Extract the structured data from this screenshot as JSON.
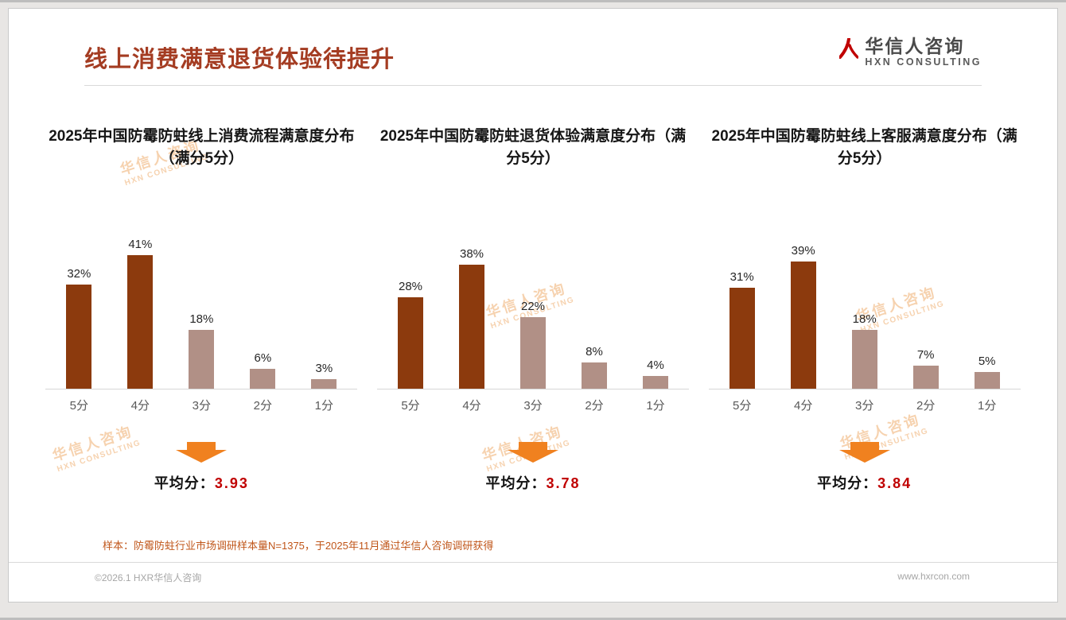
{
  "page": {
    "title": "线上消费满意退货体验待提升",
    "logo": {
      "name": "华信人咨询",
      "subtitle": "HXN CONSULTING"
    },
    "watermark": {
      "line1": "华信人咨询",
      "line2": "HXN CONSULTING"
    },
    "footnote": "样本：防霉防蛀行业市场调研样本量N=1375，于2025年11月通过华信人咨询调研获得",
    "copyright": "©2026.1 HXR华信人咨询",
    "website": "www.hxrcon.com"
  },
  "colors": {
    "title": "#A43C22",
    "bar_dark": "#8C3A0D",
    "bar_light": "#B19086",
    "arrow": "#F0811F",
    "avg_number": "#C00000",
    "footnote": "#C0561A"
  },
  "chart_data": [
    {
      "type": "bar",
      "title": "2025年中国防霉防蛀线上消费流程满意度分布（满分5分）",
      "categories": [
        "5分",
        "4分",
        "3分",
        "2分",
        "1分"
      ],
      "values": [
        32,
        41,
        18,
        6,
        3
      ],
      "value_labels": [
        "32%",
        "41%",
        "18%",
        "6%",
        "3%"
      ],
      "dark_bars": 2,
      "ylim": [
        0,
        45
      ],
      "grid": false,
      "legend": false,
      "avg_label": "平均分：",
      "avg_value": "3.93"
    },
    {
      "type": "bar",
      "title": "2025年中国防霉防蛀退货体验满意度分布（满分5分）",
      "categories": [
        "5分",
        "4分",
        "3分",
        "2分",
        "1分"
      ],
      "values": [
        28,
        38,
        22,
        8,
        4
      ],
      "value_labels": [
        "28%",
        "38%",
        "22%",
        "8%",
        "4%"
      ],
      "dark_bars": 2,
      "ylim": [
        0,
        45
      ],
      "grid": false,
      "legend": false,
      "avg_label": "平均分：",
      "avg_value": "3.78"
    },
    {
      "type": "bar",
      "title": "2025年中国防霉防蛀线上客服满意度分布（满分5分）",
      "categories": [
        "5分",
        "4分",
        "3分",
        "2分",
        "1分"
      ],
      "values": [
        31,
        39,
        18,
        7,
        5
      ],
      "value_labels": [
        "31%",
        "39%",
        "18%",
        "7%",
        "5%"
      ],
      "dark_bars": 2,
      "ylim": [
        0,
        45
      ],
      "grid": false,
      "legend": false,
      "avg_label": "平均分：",
      "avg_value": "3.84"
    }
  ]
}
